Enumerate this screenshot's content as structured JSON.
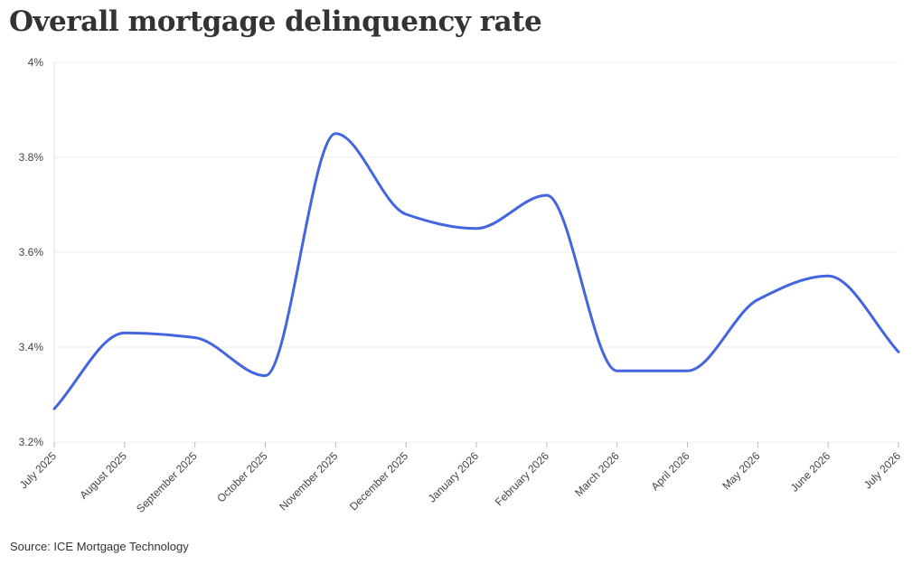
{
  "chart_data": {
    "type": "line",
    "title": "Overall mortgage delinquency rate",
    "source": "Source: ICE Mortgage Technology",
    "xlabel": "",
    "ylabel": "",
    "categories": [
      "July 2025",
      "August 2025",
      "September 2025",
      "October 2025",
      "November 2025",
      "December 2025",
      "January 2026",
      "February 2026",
      "March 2026",
      "April 2026",
      "May 2026",
      "June 2026",
      "July 2026"
    ],
    "series": [
      {
        "values": [
          3.27,
          3.43,
          3.42,
          3.34,
          3.85,
          3.68,
          3.65,
          3.72,
          3.35,
          3.35,
          3.5,
          3.55,
          3.39
        ],
        "color": "#4365e0"
      }
    ],
    "ylim": [
      3.2,
      4.0
    ],
    "yticks": [
      3.2,
      3.4,
      3.6,
      3.8,
      4.0
    ],
    "ytick_labels": [
      "3.2%",
      "3.4%",
      "3.6%",
      "3.8%",
      "4%"
    ],
    "grid": true,
    "legend": "none"
  }
}
